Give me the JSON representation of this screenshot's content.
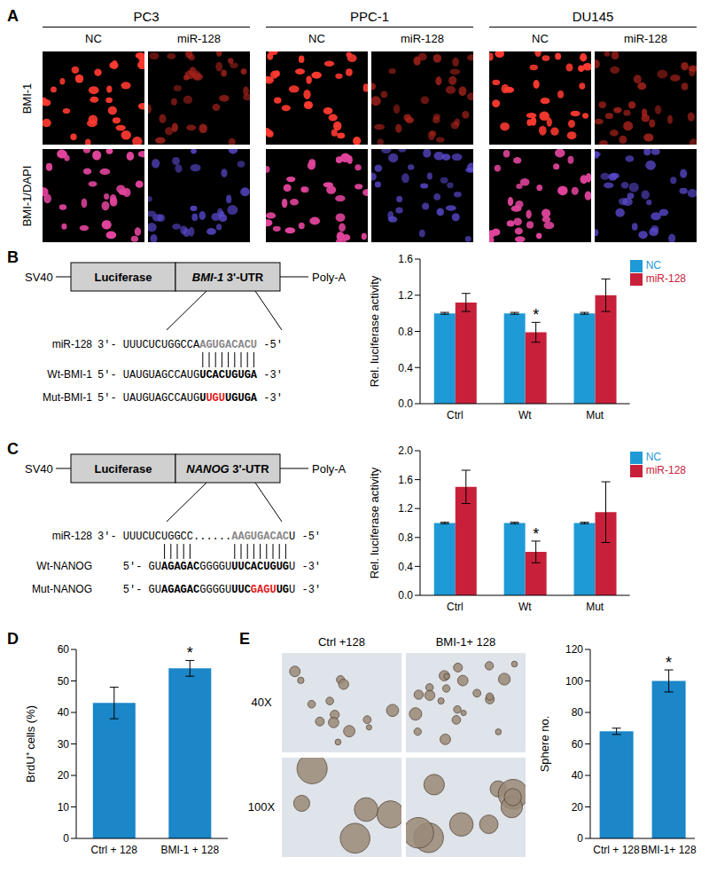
{
  "panel_labels": [
    "A",
    "B",
    "C",
    "D",
    "E"
  ],
  "panel_A": {
    "cell_lines": [
      "PC3",
      "PPC-1",
      "DU145"
    ],
    "conditions": [
      "NC",
      "miR-128"
    ],
    "rows": [
      "BMI-1",
      "BMI-1/DAPI"
    ]
  },
  "panel_B_diagram": {
    "boxes": [
      "SV40",
      "Luciferase",
      "BMI-1 3'-UTR",
      "Poly-A"
    ],
    "sequences": [
      {
        "label": "miR-128",
        "segments": [
          {
            "text": "3'- UUUCUCUGGCCA",
            "style": "plain"
          },
          {
            "text": "AGUGACACU",
            "style": "gray"
          },
          {
            "text": " -5'",
            "style": "plain"
          }
        ]
      },
      {
        "label": "Wt-BMI-1",
        "segments": [
          {
            "text": "5'- UAUGUAGCCAUG",
            "style": "plain"
          },
          {
            "text": "UCACUGUGA",
            "style": "bold"
          },
          {
            "text": " -3'",
            "style": "plain"
          }
        ]
      },
      {
        "label": "Mut-BMI-1",
        "segments": [
          {
            "text": "5'- UAUGUAGCCAUG",
            "style": "plain"
          },
          {
            "text": "U",
            "style": "bold"
          },
          {
            "text": "UGU",
            "style": "red"
          },
          {
            "text": "UGUGA",
            "style": "bold"
          },
          {
            "text": " -3'",
            "style": "plain"
          }
        ]
      }
    ]
  },
  "panel_C_diagram": {
    "boxes": [
      "SV40",
      "Luciferase",
      "NANOG 3'-UTR",
      "Poly-A"
    ],
    "sequences": [
      {
        "label": "miR-128",
        "segments": [
          {
            "text": "3'- UUUCUCUGGCC......",
            "style": "plain"
          },
          {
            "text": "AAGUGACAC",
            "style": "gray"
          },
          {
            "text": "U -5'",
            "style": "plain"
          }
        ]
      },
      {
        "label": "Wt-NANOG",
        "segments": [
          {
            "text": "5'- GU",
            "style": "plain"
          },
          {
            "text": "AGAGAC",
            "style": "bold"
          },
          {
            "text": "GGGGU",
            "style": "plain"
          },
          {
            "text": "UUCACUGUG",
            "style": "bold"
          },
          {
            "text": "U -3'",
            "style": "plain"
          }
        ]
      },
      {
        "label": "Mut-NANOG",
        "segments": [
          {
            "text": "5'- GU",
            "style": "plain"
          },
          {
            "text": "AGAGAC",
            "style": "bold"
          },
          {
            "text": "GGGGU",
            "style": "plain"
          },
          {
            "text": "UUC",
            "style": "bold"
          },
          {
            "text": "GAGU",
            "style": "red"
          },
          {
            "text": "UG",
            "style": "bold"
          },
          {
            "text": "U -3'",
            "style": "plain"
          }
        ]
      }
    ]
  },
  "panel_E_images": {
    "columns": [
      "Ctrl +128",
      "BMI-1+ 128"
    ],
    "rows": [
      "40X",
      "100X"
    ]
  },
  "chart_data": [
    {
      "type": "bar",
      "categories": [
        "Ctrl",
        "Wt",
        "Mut"
      ],
      "series": [
        {
          "name": "NC",
          "color": "#1e9ad6",
          "values": [
            1.0,
            1.0,
            1.0
          ],
          "errors": [
            0.01,
            0.01,
            0.01
          ]
        },
        {
          "name": "miR-128",
          "color": "#c8203a",
          "values": [
            1.12,
            0.79,
            1.2
          ],
          "errors": [
            0.1,
            0.11,
            0.18
          ]
        }
      ],
      "ylabel": "Rel. luciferase activity",
      "ylim": [
        0,
        1.6
      ],
      "yticks": [
        {
          "value": 0,
          "label": "0.0"
        },
        0.4,
        0.8,
        1.2,
        1.6
      ],
      "legend": "upper right",
      "grid": false,
      "annotations": [
        {
          "category": "Wt",
          "series": "miR-128",
          "text": "*"
        }
      ]
    },
    {
      "type": "bar",
      "categories": [
        "Ctrl",
        "Wt",
        "Mut"
      ],
      "series": [
        {
          "name": "NC",
          "color": "#1e9ad6",
          "values": [
            1.0,
            1.0,
            1.0
          ],
          "errors": [
            0.01,
            0.01,
            0.01
          ]
        },
        {
          "name": "miR-128",
          "color": "#c8203a",
          "values": [
            1.5,
            0.6,
            1.15
          ],
          "errors": [
            0.23,
            0.15,
            0.42
          ]
        }
      ],
      "ylabel": "Rel. luciferase activity",
      "ylim": [
        0,
        2.0
      ],
      "yticks": [
        {
          "value": 0,
          "label": "0.0"
        },
        0.4,
        0.8,
        1.2,
        1.6,
        {
          "value": 2,
          "label": "2.0"
        }
      ],
      "legend": "upper right",
      "grid": false,
      "annotations": [
        {
          "category": "Wt",
          "series": "miR-128",
          "text": "*"
        }
      ]
    },
    {
      "type": "bar",
      "categories": [
        "Ctrl + 128",
        "BMI-1 + 128"
      ],
      "values": [
        43,
        54
      ],
      "errors": [
        5,
        2.5
      ],
      "color": "#1b86c8",
      "ylabel": "BrdU⁺ cells (%)",
      "ylim": [
        0,
        60
      ],
      "yticks": [
        0,
        10,
        20,
        30,
        40,
        50,
        60
      ],
      "grid": false,
      "annotations": [
        {
          "category": "BMI-1 + 128",
          "text": "*"
        }
      ]
    },
    {
      "type": "bar",
      "categories": [
        "Ctrl + 128",
        "BMI-1+ 128"
      ],
      "values": [
        68,
        100
      ],
      "errors": [
        2,
        7
      ],
      "color": "#1b86c8",
      "ylabel": "Sphere no.",
      "ylim": [
        0,
        120
      ],
      "yticks": [
        0,
        20,
        40,
        60,
        80,
        100,
        120
      ],
      "grid": false,
      "annotations": [
        {
          "category": "BMI-1+ 128",
          "text": "*"
        }
      ]
    }
  ]
}
